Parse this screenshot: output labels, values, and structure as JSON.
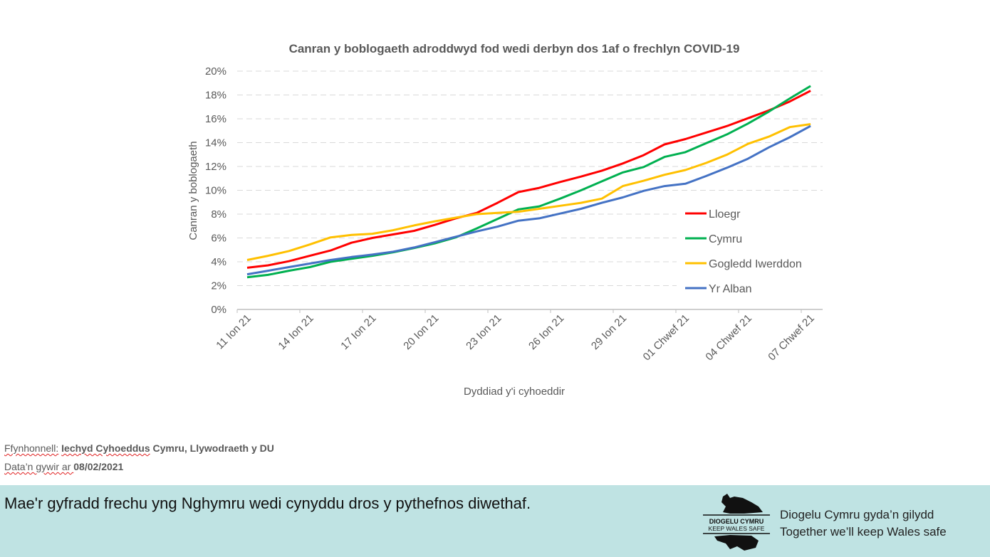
{
  "chart_data": {
    "type": "line",
    "title": "Canran y boblogaeth adroddwyd fod wedi derbyn dos 1af o frechlyn COVID-19",
    "xlabel": "Dyddiad y'i cyhoeddir",
    "ylabel": "Canran y boblogaeth",
    "ylim": [
      0,
      20
    ],
    "yticks": [
      "0%",
      "2%",
      "4%",
      "6%",
      "8%",
      "10%",
      "12%",
      "14%",
      "16%",
      "18%",
      "20%"
    ],
    "x": [
      "11 Ion 21",
      "12 Ion 21",
      "13 Ion 21",
      "14 Ion 21",
      "15 Ion 21",
      "16 Ion 21",
      "17 Ion 21",
      "18 Ion 21",
      "19 Ion 21",
      "20 Ion 21",
      "21 Ion 21",
      "22 Ion 21",
      "23 Ion 21",
      "24 Ion 21",
      "25 Ion 21",
      "26 Ion 21",
      "27 Ion 21",
      "28 Ion 21",
      "29 Ion 21",
      "30 Ion 21",
      "31 Ion 21",
      "01 Chwef 21",
      "02 Chwef 21",
      "03 Chwef 21",
      "04 Chwef 21",
      "05 Chwef 21",
      "06 Chwef 21",
      "07 Chwef 21"
    ],
    "xtick_labels": [
      "11 Ion 21",
      "14 Ion 21",
      "17 Ion 21",
      "20 Ion 21",
      "23 Ion 21",
      "26 Ion 21",
      "29 Ion 21",
      "01 Chwef 21",
      "04 Chwef 21",
      "07 Chwef 21"
    ],
    "grid": "horizontal dashed",
    "legend_position": "right",
    "series": [
      {
        "name": "Lloegr",
        "color": "#ff0000",
        "values": [
          3.5,
          3.7,
          4.05,
          4.5,
          4.95,
          5.6,
          6.0,
          6.3,
          6.6,
          7.1,
          7.65,
          8.1,
          8.95,
          9.85,
          10.2,
          10.7,
          11.15,
          11.65,
          12.25,
          12.95,
          13.85,
          14.3,
          14.85,
          15.4,
          16.05,
          16.7,
          17.45,
          18.35
        ]
      },
      {
        "name": "Cymru",
        "color": "#00b050",
        "values": [
          2.7,
          2.9,
          3.25,
          3.55,
          4.0,
          4.25,
          4.5,
          4.8,
          5.15,
          5.55,
          6.05,
          6.8,
          7.6,
          8.4,
          8.65,
          9.3,
          10.0,
          10.75,
          11.5,
          11.95,
          12.8,
          13.2,
          13.95,
          14.7,
          15.6,
          16.6,
          17.7,
          18.75
        ]
      },
      {
        "name": "Gogledd Iwerddon",
        "color": "#ffc000",
        "values": [
          4.15,
          4.5,
          4.9,
          5.45,
          6.05,
          6.25,
          6.35,
          6.65,
          7.05,
          7.4,
          7.7,
          8.0,
          8.1,
          8.2,
          8.45,
          8.7,
          8.95,
          9.3,
          10.35,
          10.8,
          11.3,
          11.7,
          12.3,
          13.0,
          13.9,
          14.5,
          15.3,
          15.55
        ]
      },
      {
        "name": "Yr Alban",
        "color": "#4472c4",
        "values": [
          2.95,
          3.25,
          3.55,
          3.85,
          4.15,
          4.4,
          4.6,
          4.85,
          5.2,
          5.65,
          6.1,
          6.55,
          6.95,
          7.45,
          7.65,
          8.05,
          8.45,
          8.95,
          9.4,
          9.95,
          10.35,
          10.55,
          11.2,
          11.9,
          12.65,
          13.6,
          14.45,
          15.4
        ]
      }
    ]
  },
  "source": {
    "label": "Ffynhonnell:",
    "org1": "Iechyd Cyhoeddus",
    "org2": " Cymru, Llywodraeth y DU",
    "date_label": "Data’n gywir ar ",
    "date": "08/02/2021"
  },
  "banner": {
    "message": "Mae'r gyfradd frechu yng Nghymru wedi cynyddu dros y pythefnos diwethaf.",
    "tagline_cy": "Diogelu Cymru gyda’n gilydd",
    "tagline_en": "Together we’ll keep Wales safe",
    "logo_text_cy": "DIOGELU CYMRU",
    "logo_text_en": "KEEP WALES SAFE",
    "color": "#bfe3e3"
  }
}
